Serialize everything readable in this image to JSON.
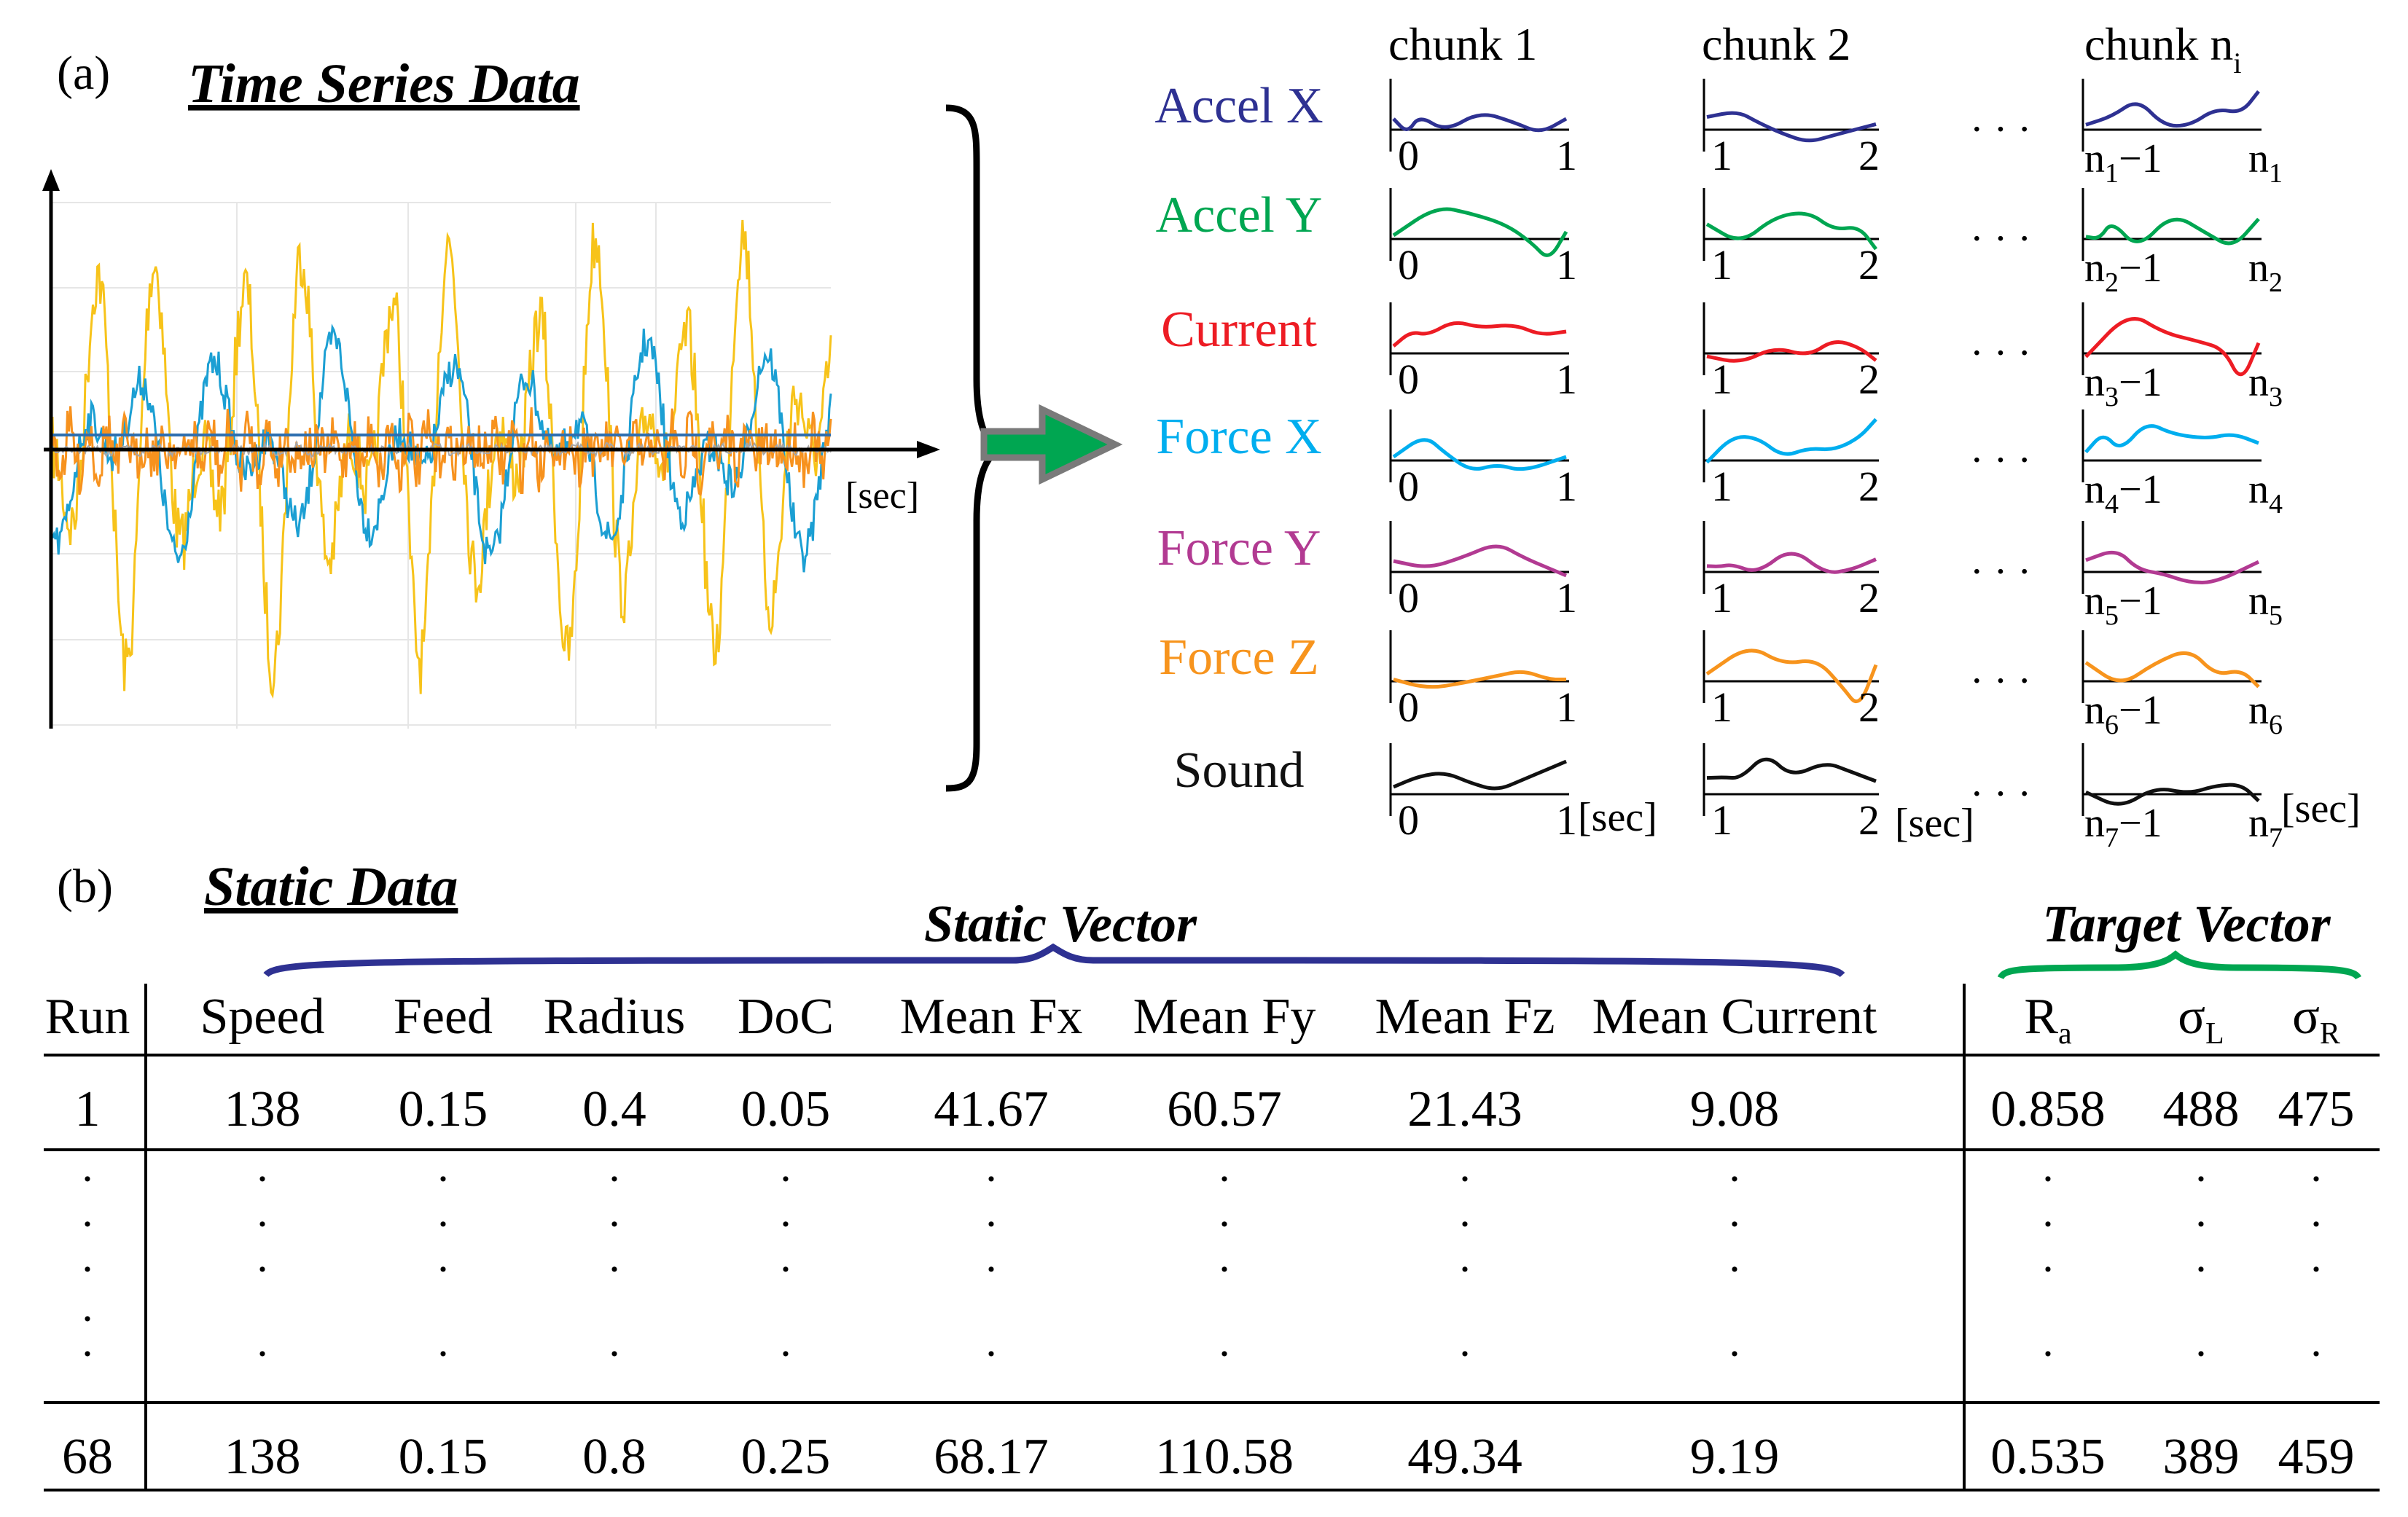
{
  "panel_a": {
    "label": "(a)",
    "title": "Time Series Data",
    "axis_unit": "[sec]",
    "raw_series_colors": [
      "#f7c31a",
      "#1b9fd3",
      "#f7921e",
      "#a6a6a6"
    ]
  },
  "chunks": {
    "headers": [
      {
        "text": "chunk 1",
        "sub": ""
      },
      {
        "text": "chunk 2",
        "sub": ""
      },
      {
        "text": "chunk n",
        "sub": "i"
      }
    ],
    "unit": "[sec]",
    "ellipsis": "· · ·",
    "signals": [
      {
        "name": "Accel X",
        "color": "#2e3192",
        "c1": [
          "0",
          "1"
        ],
        "c2": [
          "1",
          "2"
        ],
        "cn_idx": "1"
      },
      {
        "name": "Accel Y",
        "color": "#00a651",
        "c1": [
          "0",
          "1"
        ],
        "c2": [
          "1",
          "2"
        ],
        "cn_idx": "2"
      },
      {
        "name": "Current",
        "color": "#ed1c24",
        "c1": [
          "0",
          "1"
        ],
        "c2": [
          "1",
          "2"
        ],
        "cn_idx": "3"
      },
      {
        "name": "Force X",
        "color": "#00aeef",
        "c1": [
          "0",
          "1"
        ],
        "c2": [
          "1",
          "2"
        ],
        "cn_idx": "4"
      },
      {
        "name": "Force Y",
        "color": "#b23a92",
        "c1": [
          "0",
          "1"
        ],
        "c2": [
          "1",
          "2"
        ],
        "cn_idx": "5"
      },
      {
        "name": "Force Z",
        "color": "#f7941d",
        "c1": [
          "0",
          "1"
        ],
        "c2": [
          "1",
          "2"
        ],
        "cn_idx": "6"
      },
      {
        "name": "Sound",
        "color": "#111111",
        "c1": [
          "0",
          "1"
        ],
        "c2": [
          "1",
          "2"
        ],
        "cn_idx": "7"
      }
    ]
  },
  "panel_b": {
    "label": "(b)",
    "title": "Static Data",
    "static_vector_label": "Static Vector",
    "target_vector_label": "Target Vector",
    "static_brace_color": "#2e3192",
    "target_brace_color": "#00a651",
    "columns": [
      "Run",
      "Speed",
      "Feed",
      "Radius",
      "DoC",
      "Mean Fx",
      "Mean Fy",
      "Mean Fz",
      "Mean Current",
      "R",
      "σ",
      "σ"
    ],
    "column_subs": [
      "",
      "",
      "",
      "",
      "",
      "",
      "",
      "",
      "",
      "a",
      "L",
      "R"
    ],
    "rows": [
      [
        "1",
        "138",
        "0.15",
        "0.4",
        "0.05",
        "41.67",
        "60.57",
        "21.43",
        "9.08",
        "0.858",
        "488",
        "475"
      ],
      [
        "68",
        "138",
        "0.15",
        "0.8",
        "0.25",
        "68.17",
        "110.58",
        "49.34",
        "9.19",
        "0.535",
        "389",
        "459"
      ]
    ],
    "ellipsis_dot": "·"
  }
}
